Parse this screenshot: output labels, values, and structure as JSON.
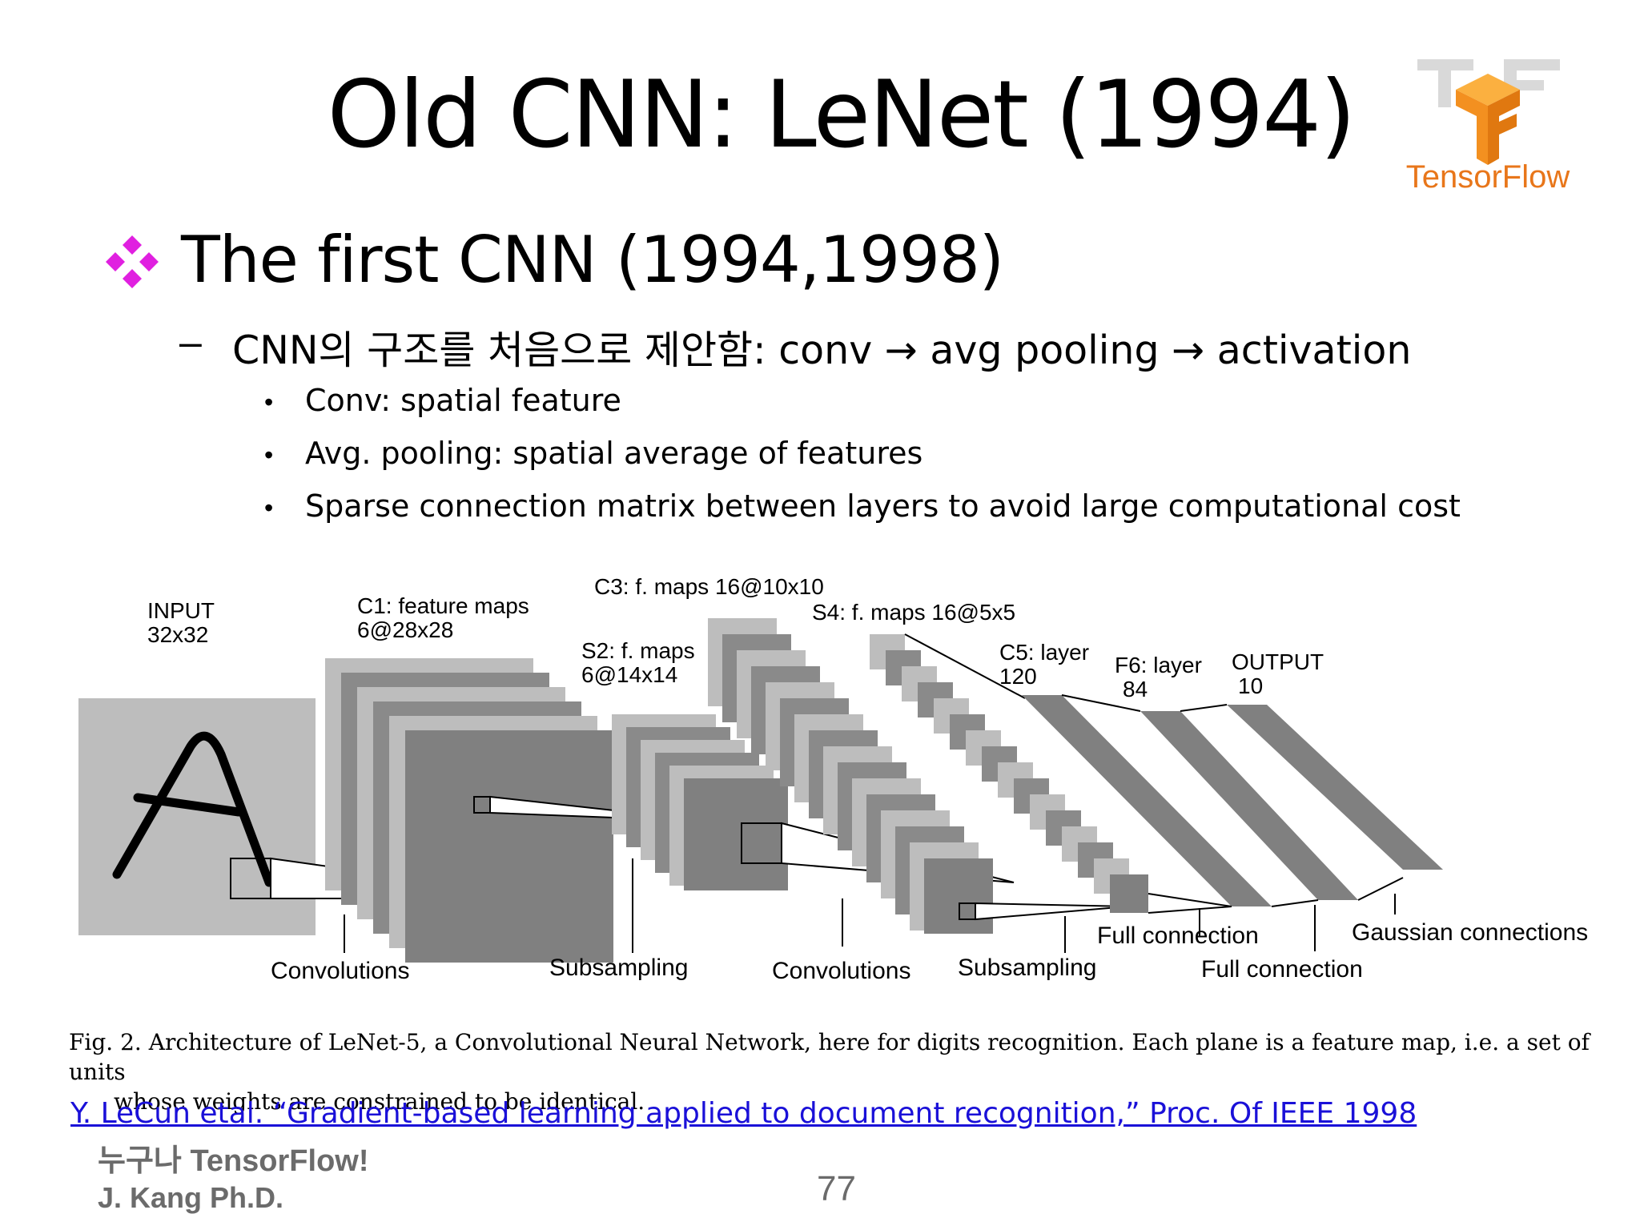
{
  "slide": {
    "title": "Old CNN: LeNet (1994)",
    "logo_text": "TensorFlow",
    "bullet": "The first CNN (1994,1998)",
    "sub_dash": "–",
    "sub_text": "CNN의 구조를 처음으로 제안함: conv → avg pooling → activation",
    "points": [
      "Conv: spatial feature",
      "Avg. pooling: spatial average of features",
      "Sparse connection matrix between layers to avoid large computational cost"
    ],
    "point_marker": "•",
    "caption_line1": "Fig. 2.   Architecture of LeNet-5, a Convolutional Neural Network, here for digits recognition.  Each plane is a feature map, i.e. a set of units",
    "caption_line2": "whose weights are constrained to be identical.",
    "reference": "Y. LeCun etal. “Gradient-based learning applied to document recognition,” Proc. Of IEEE 1998",
    "footer_brand": "누구나 TensorFlow!",
    "footer_author": "J. Kang Ph.D.",
    "page_number": "77"
  },
  "diagram": {
    "input_label_1": "INPUT",
    "input_label_2": "32x32",
    "c1_label_1": "C1: feature maps",
    "c1_label_2": "6@28x28",
    "s2_label_1": "S2: f. maps",
    "s2_label_2": "6@14x14",
    "c3_label": "C3: f. maps 16@10x10",
    "s4_label": "S4: f. maps 16@5x5",
    "c5_label_1": "C5: layer",
    "c5_label_2": "120",
    "f6_label_1": "F6: layer",
    "f6_label_2": "84",
    "output_label_1": "OUTPUT",
    "output_label_2": "10",
    "op_convolutions_1": "Convolutions",
    "op_subsampling_1": "Subsampling",
    "op_convolutions_2": "Convolutions",
    "op_subsampling_2": "Subsampling",
    "op_full_connection_1": "Full connection",
    "op_full_connection_2": "Full connection",
    "op_gaussian": "Gaussian connections"
  },
  "colors": {
    "bullet_magenta": "#e020e0",
    "map_light": "#bdbdbd",
    "map_dark": "#808080",
    "link_blue": "#1a10d8",
    "footer_gray": "#6b6b6b",
    "tf_orange": "#f39020"
  },
  "icons": {
    "bullet": "diamond-cluster-icon",
    "logo": "tensorflow-logo"
  }
}
